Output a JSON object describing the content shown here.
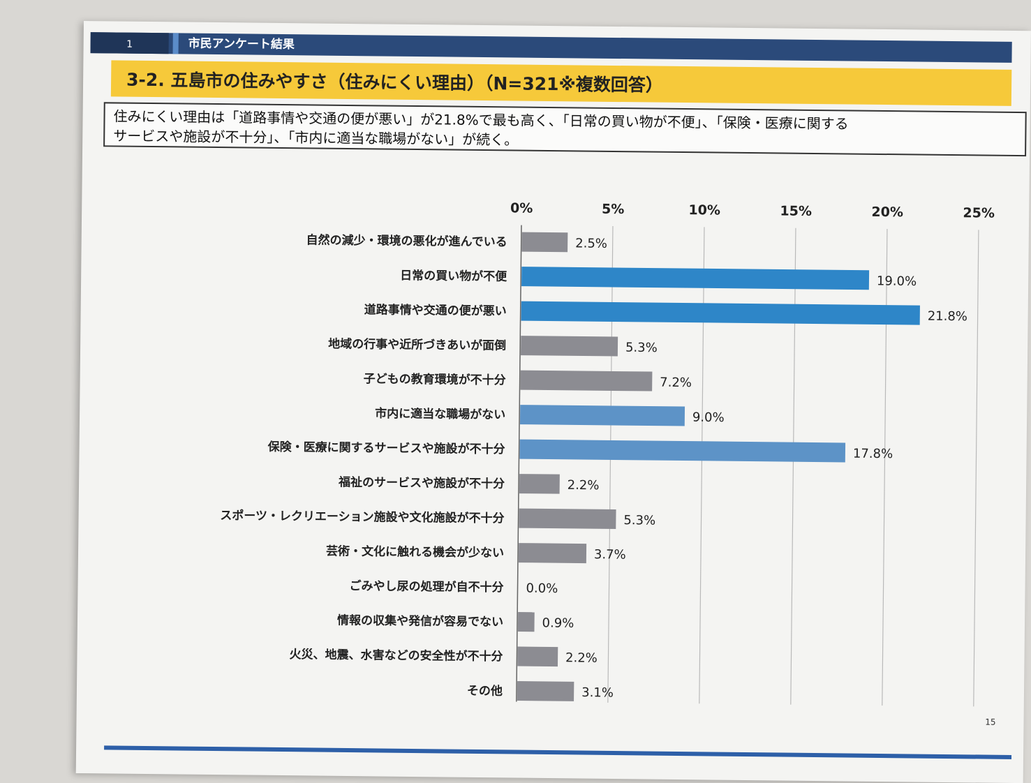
{
  "header": {
    "page_num": "1",
    "section_title": "市民アンケート結果"
  },
  "title": "3-2. 五島市の住みやすさ（住みにくい理由）（N=321※複数回答）",
  "summary": {
    "line1": "住みにくい理由は「道路事情や交通の便が悪い」が21.8%で最も高く、「日常の買い物が不便」、「保険・医療に関する",
    "line2": "サービスや施設が不十分」、「市内に適当な職場がない」が続く。"
  },
  "page_number": "15",
  "colors": {
    "gray_bar": "#8c8c92",
    "blue_bar": "#2e86c8",
    "blue_light": "#5d93c7",
    "header": "#2b4a7a",
    "title_band": "#f6c93a"
  },
  "chart_data": {
    "type": "bar",
    "orientation": "horizontal",
    "xlim": [
      0,
      25
    ],
    "ticks": [
      "0%",
      "5%",
      "10%",
      "15%",
      "20%",
      "25%"
    ],
    "categories": [
      "自然の減少・環境の悪化が進んでいる",
      "日常の買い物が不便",
      "道路事情や交通の便が悪い",
      "地域の行事や近所づきあいが面倒",
      "子どもの教育環境が不十分",
      "市内に適当な職場がない",
      "保険・医療に関するサービスや施設が不十分",
      "福祉のサービスや施設が不十分",
      "スポーツ・レクリエーション施設や文化施設が不十分",
      "芸術・文化に触れる機会が少ない",
      "ごみやし尿の処理が自不十分",
      "情報の収集や発信が容易でない",
      "火災、地震、水害などの安全性が不十分",
      "その他"
    ],
    "values": [
      2.5,
      19.0,
      21.8,
      5.3,
      7.2,
      9.0,
      17.8,
      2.2,
      5.3,
      3.7,
      0.0,
      0.9,
      2.2,
      3.1
    ],
    "value_labels": [
      "2.5%",
      "19.0%",
      "21.8%",
      "5.3%",
      "7.2%",
      "9.0%",
      "17.8%",
      "2.2%",
      "5.3%",
      "3.7%",
      "0.0%",
      "0.9%",
      "2.2%",
      "3.1%"
    ],
    "highlight": [
      "gray",
      "blue",
      "blue",
      "gray",
      "gray",
      "blue_light",
      "blue_light",
      "gray",
      "gray",
      "gray",
      "gray",
      "gray",
      "gray",
      "gray"
    ]
  }
}
